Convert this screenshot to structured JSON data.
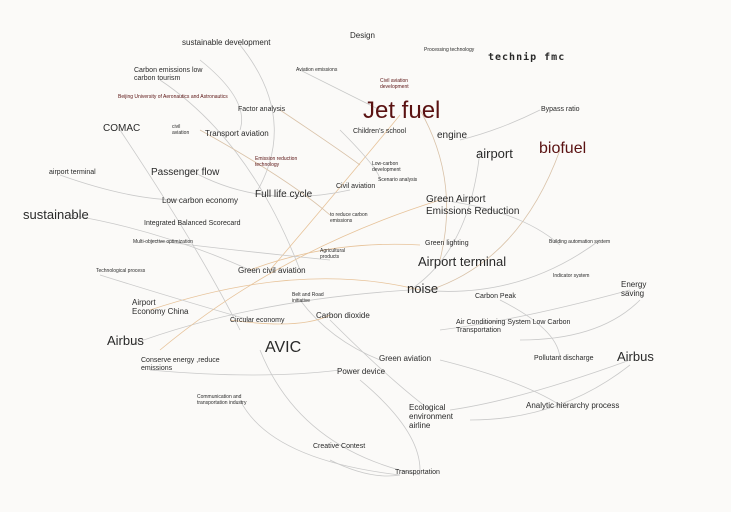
{
  "edge_colors": {
    "gray": "#c9c9c9",
    "orange": "#e7c39a",
    "tan": "#d9c2a8"
  },
  "nodes": {
    "sustainable_development": "sustainable development",
    "design": "Design",
    "processing_technology": "Processing technology",
    "technip_fmc": "technip fmc",
    "carbon_emissions_low_carbon_tourism": "Carbon emissions low\ncarbon tourism",
    "aviation_emissions": "Aviation emissions",
    "civil_aviation_development": "Civil aviation\ndevelopment",
    "beijing_university": "Beijing University of Aeronautics and Astronautics",
    "factor_analysis": "Factor analysis",
    "jet_fuel": "Jet fuel",
    "bypass_ratio": "Bypass ratio",
    "comac": "COMAC",
    "civil_aviation": "civil\naviation",
    "transport_aviation": "Transport aviation",
    "childrens_school": "Children's school",
    "engine": "engine",
    "biofuel": "biofuel",
    "airport": "airport",
    "emission_reduction_technology": "Emission reduction\ntechnology",
    "low_carbon_development": "Low-carbon\ndevelopment",
    "airport_terminal_small": "airport terminal",
    "passenger_flow": "Passenger flow",
    "scenario_analysis": "Scenario analysis",
    "civil_aviation_2": "Civil aviation",
    "full_life_cycle": "Full life cycle",
    "low_carbon_economy": "Low carbon economy",
    "green_airport_emissions_reduction": "Green Airport\nEmissions Reduction",
    "sustainable": "sustainable",
    "integrated_balanced_scorecard": "Integrated Balanced Scorecard",
    "to_reduce_carbon_emissions": "to reduce carbon\nemissions",
    "multi_objective_optimization": "Multi-objective optimization",
    "green_lighting": "Green lighting",
    "building_automation_system": "Building automation system",
    "agricultural_products": "Agricultural\nproducts",
    "airport_terminal": "Airport terminal",
    "technological_process": "Technological process",
    "green_civil_aviation": "Green civil aviation",
    "indicator_system": "Indicator system",
    "energy_saving": "Energy\nsaving",
    "noise": "noise",
    "airport_economy_china": "Airport\nEconomy China",
    "belt_and_road": "Belt and Road\ninitiative",
    "carbon_peak": "Carbon Peak",
    "carbon_dioxide": "Carbon dioxide",
    "circular_economy": "Circular economy",
    "air_conditioning_system": "Air Conditioning System Low Carbon\nTransportation",
    "airbus_left": "Airbus",
    "avic": "AVIC",
    "conserve_energy": "Conserve energy ,reduce\nemissions",
    "green_aviation": "Green aviation",
    "pollutant_discharge": "Pollutant discharge",
    "airbus_right": "Airbus",
    "power_device": "Power device",
    "communication_industry": "Communication and\ntransportation industry",
    "ecological_environment_airline": "Ecological\nenvironment\nairline",
    "analytic_hierarchy_process": "Analytic hierarchy process",
    "creative_contest": "Creative Contest",
    "transportation": "Transportation"
  }
}
